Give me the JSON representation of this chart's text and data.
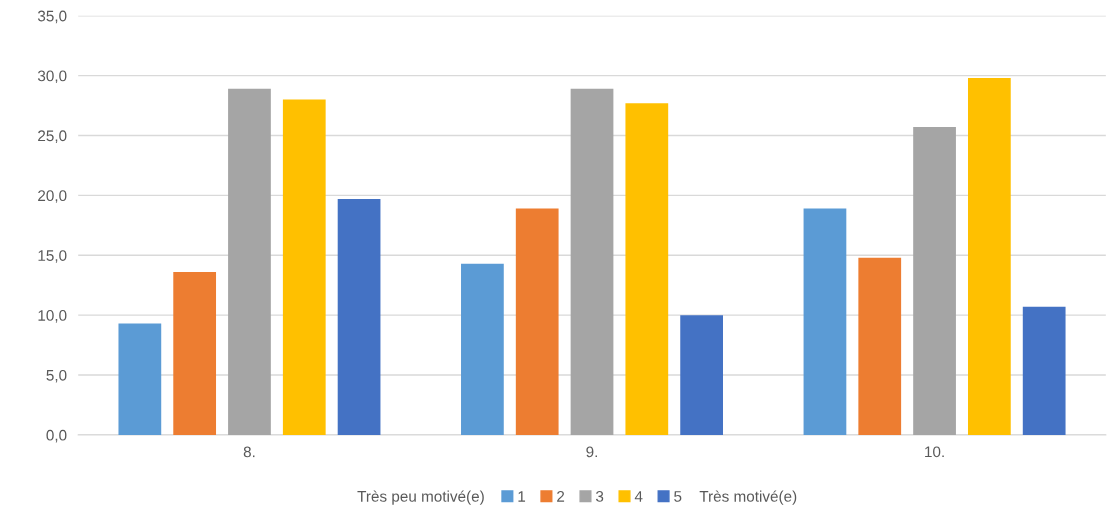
{
  "chart_data": {
    "type": "bar",
    "categories": [
      "8.",
      "9.",
      "10."
    ],
    "series": [
      {
        "name": "1",
        "color": "#5b9bd5",
        "values": [
          9.3,
          14.3,
          18.9
        ]
      },
      {
        "name": "2",
        "color": "#ed7d31",
        "values": [
          13.6,
          18.9,
          14.8
        ]
      },
      {
        "name": "3",
        "color": "#a5a5a5",
        "values": [
          28.9,
          28.9,
          25.7
        ]
      },
      {
        "name": "4",
        "color": "#ffc000",
        "values": [
          28.0,
          27.7,
          29.8
        ]
      },
      {
        "name": "5",
        "color": "#4472c4",
        "values": [
          19.7,
          10.0,
          10.7
        ]
      }
    ],
    "ylim": [
      0,
      35
    ],
    "yticks": [
      {
        "value": 0,
        "label": "0,0"
      },
      {
        "value": 5,
        "label": "5,0"
      },
      {
        "value": 10,
        "label": "10,0"
      },
      {
        "value": 15,
        "label": "15,0"
      },
      {
        "value": 20,
        "label": "20,0"
      },
      {
        "value": 25,
        "label": "25,0"
      },
      {
        "value": 30,
        "label": "30,0"
      },
      {
        "value": 35,
        "label": "35,0"
      }
    ],
    "grid": "y",
    "legend": "bottom",
    "annotations": [
      "Très peu motivé(e)",
      "Très motivé(e)"
    ]
  }
}
